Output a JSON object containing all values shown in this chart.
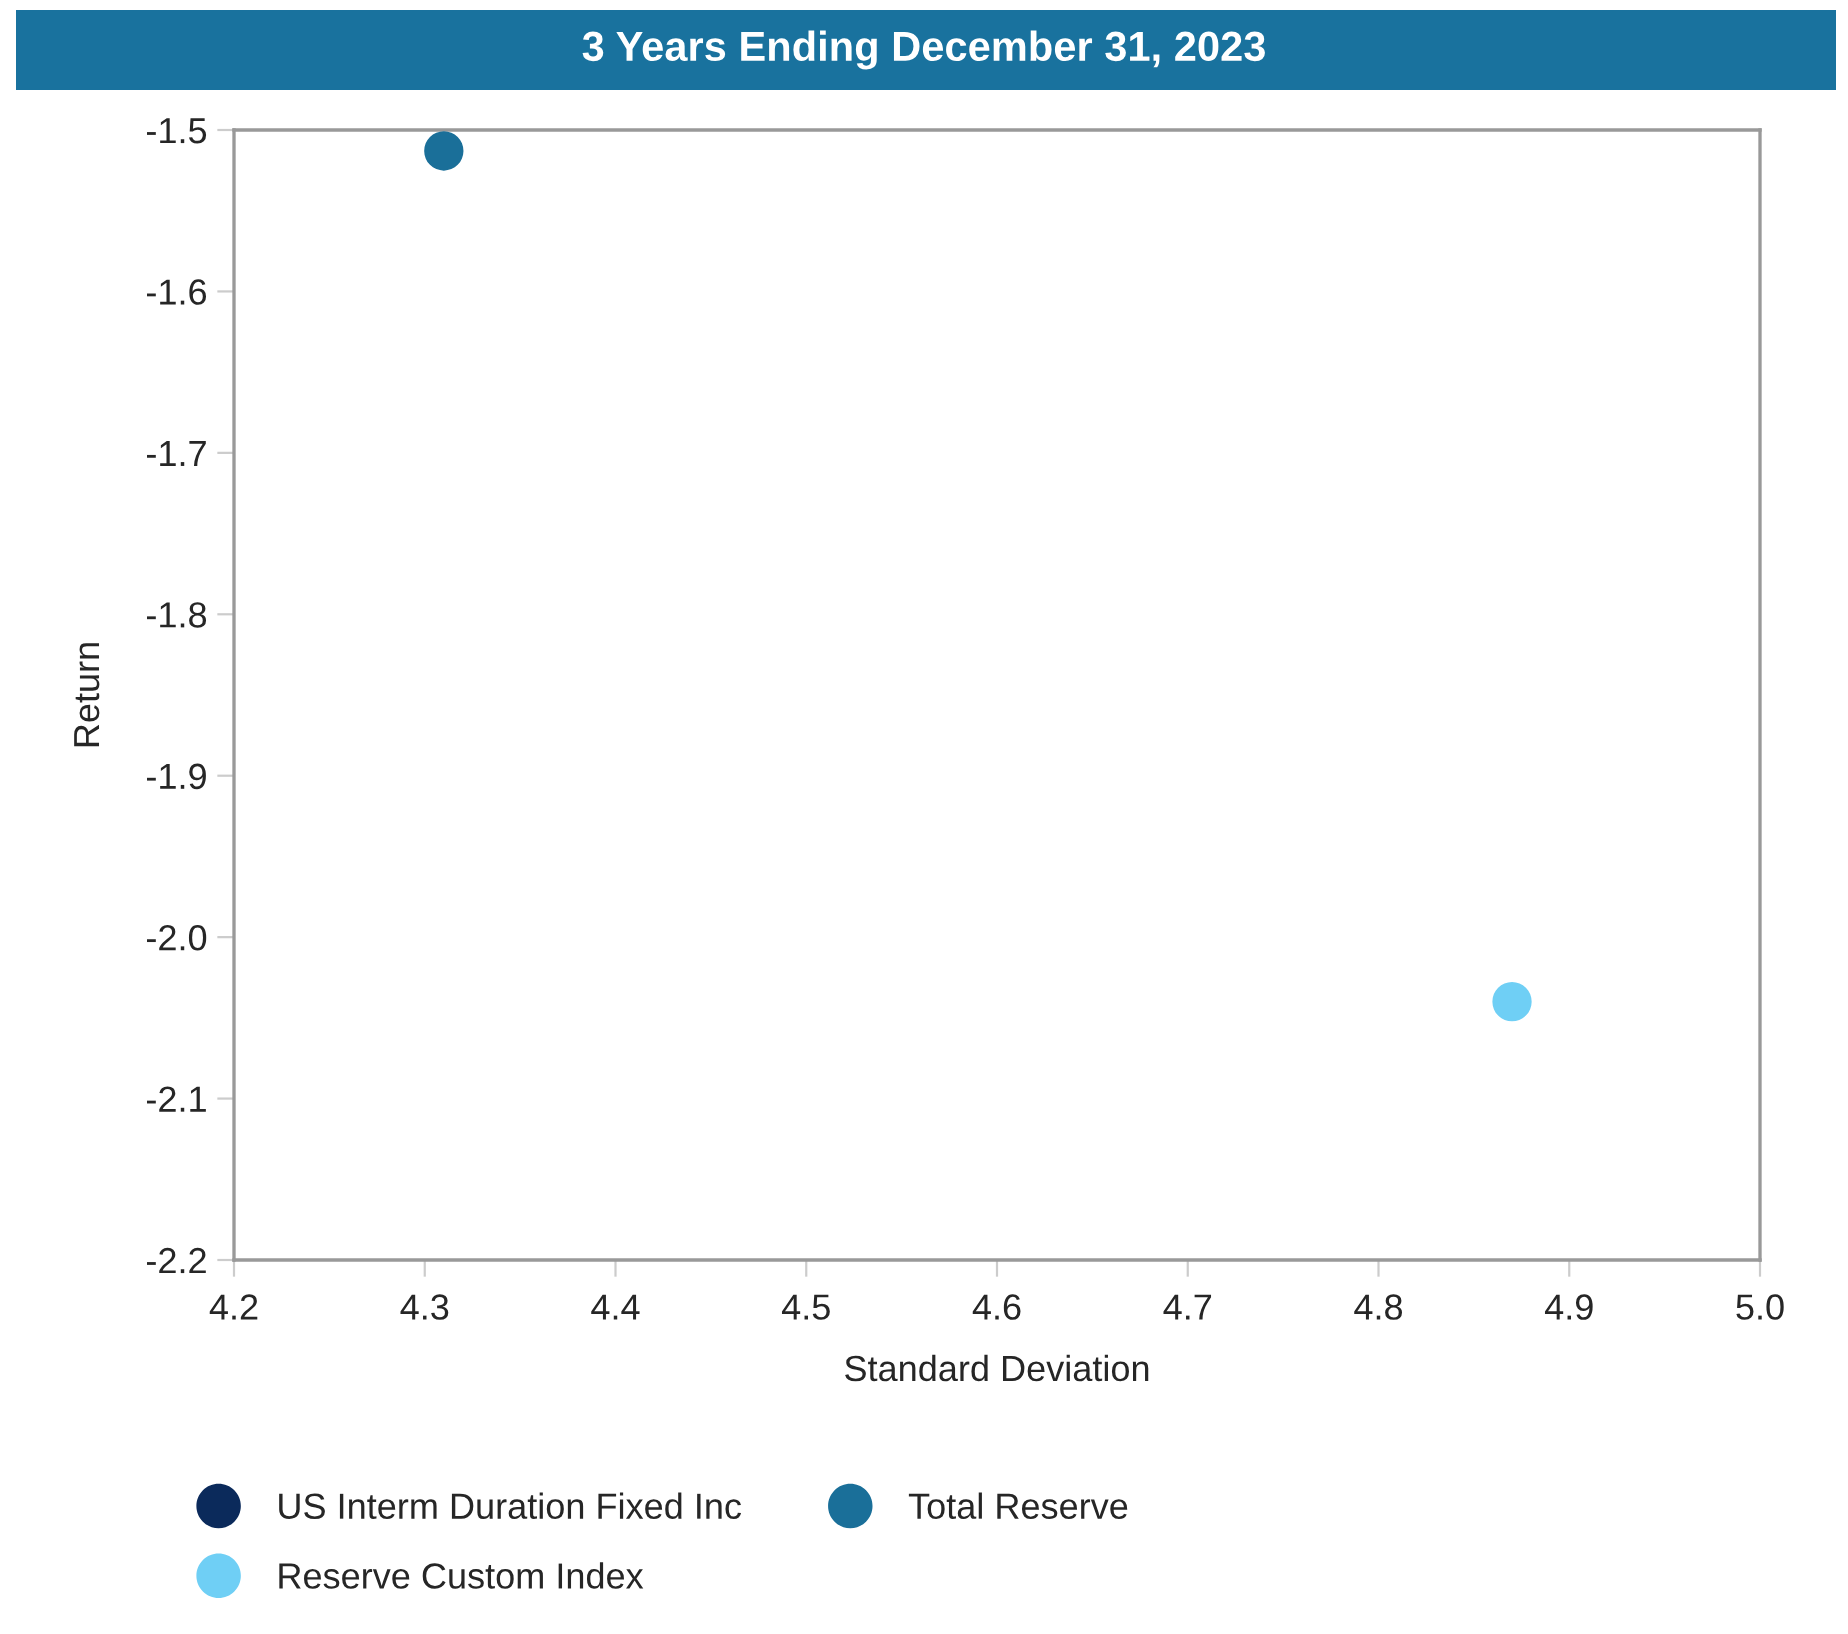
{
  "chart_data": {
    "type": "scatter",
    "title": "3 Years Ending December 31, 2023",
    "xlabel": "Standard Deviation",
    "ylabel": "Return",
    "series": [
      {
        "name": "US Interm Duration Fixed Inc",
        "color": "#0b2a5b"
      },
      {
        "name": "Total Reserve",
        "color": "#1a6f99",
        "x": [
          4.31
        ],
        "values": [
          -1.513
        ]
      },
      {
        "name": "Reserve Custom Index",
        "color": "#6fcff5",
        "x": [
          4.87
        ],
        "values": [
          -2.04
        ]
      }
    ],
    "xlim": [
      4.2,
      5.0
    ],
    "xticks": [
      4.2,
      4.3,
      4.4,
      4.5,
      4.6,
      4.7,
      4.8,
      4.9,
      {
        "value": 5,
        "label": "5.0"
      }
    ],
    "ylim": [
      -2.2,
      -1.5
    ],
    "yticks": [
      -2.2,
      -2.1,
      {
        "value": -2,
        "label": "-2.0"
      },
      -1.9,
      -1.8,
      -1.7,
      -1.6,
      -1.5
    ],
    "grid": false,
    "legend": "bottom",
    "marker": "circle"
  }
}
